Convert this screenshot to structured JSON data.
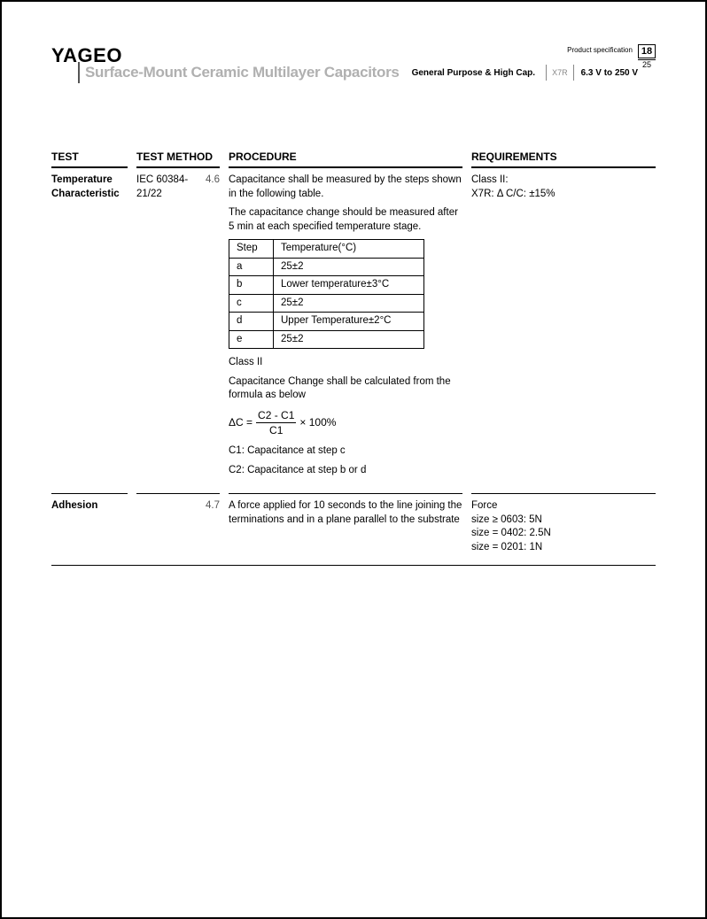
{
  "header": {
    "brand": "YAGEO",
    "title": "Surface-Mount Ceramic Multilayer Capacitors",
    "category": "General Purpose & High Cap.",
    "dielectric": "X7R",
    "voltage_range": "6.3 V to 250 V",
    "spec_label": "Product specification",
    "page_current": "18",
    "page_total": "25"
  },
  "columns": {
    "test": "TEST",
    "method": "TEST METHOD",
    "procedure": "PROCEDURE",
    "requirements": "REQUIREMENTS"
  },
  "rows": [
    {
      "test": "Temperature Characteristic",
      "method_standard": "IEC 60384-21/22",
      "method_clause": "4.6",
      "procedure": {
        "p1": "Capacitance shall be measured by the steps shown in the following table.",
        "p2": "The capacitance change should be measured after 5 min at each specified temperature stage.",
        "step_table": {
          "head_step": "Step",
          "head_temp": "Temperature(°C)",
          "rows": [
            {
              "step": "a",
              "temp": "25±2"
            },
            {
              "step": "b",
              "temp": "Lower temperature±3°C"
            },
            {
              "step": "c",
              "temp": "25±2"
            },
            {
              "step": "d",
              "temp": "Upper Temperature±2°C"
            },
            {
              "step": "e",
              "temp": "25±2"
            }
          ]
        },
        "class_label": "Class II",
        "p3": "Capacitance Change shall be calculated from the formula as below",
        "formula_lhs": "ΔC =",
        "formula_num": "C2 - C1",
        "formula_den": "C1",
        "formula_tail": "× 100%",
        "note1": "C1: Capacitance at step c",
        "note2": "C2: Capacitance at step b or d"
      },
      "requirements": {
        "l1": "Class II:",
        "l2": "X7R: Δ C/C: ±15%"
      }
    },
    {
      "test": "Adhesion",
      "method_standard": "",
      "method_clause": "4.7",
      "procedure_text": "A force applied for 10 seconds to the line joining the terminations and in a plane parallel to the substrate",
      "requirements": {
        "l1": "Force",
        "l2": "size ≥ 0603: 5N",
        "l3": "size = 0402: 2.5N",
        "l4": "size = 0201: 1N"
      }
    }
  ]
}
